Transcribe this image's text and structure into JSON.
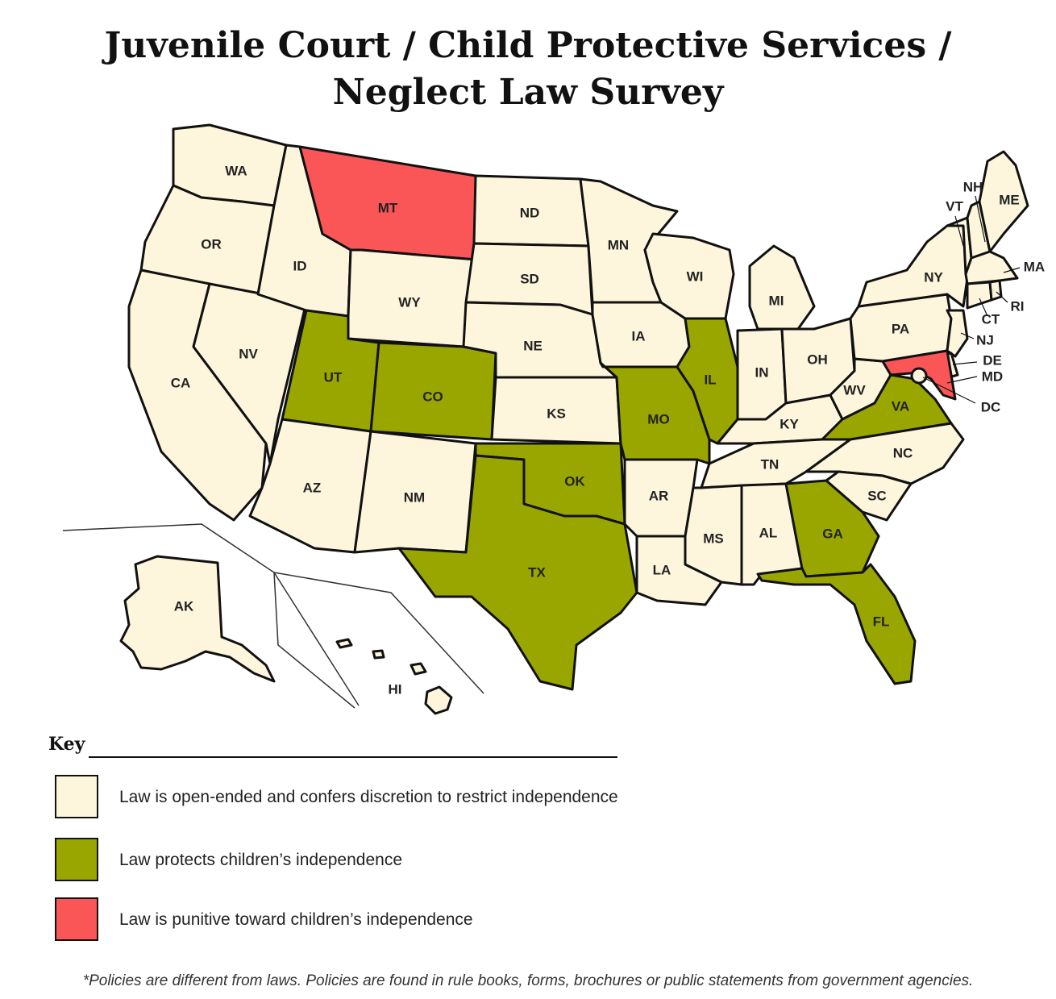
{
  "title_line1": "Juvenile Court / Child Protective Services /",
  "title_line2": "Neglect Law Survey",
  "colors": {
    "open": "#fdf6dc",
    "protects": "#9aa600",
    "punitive": "#fa5557"
  },
  "categories": {
    "punitive": [
      "MT",
      "MD"
    ],
    "protects": [
      "UT",
      "CO",
      "TX",
      "OK",
      "MO",
      "IL",
      "GA",
      "FL",
      "VA"
    ],
    "open": [
      "WA",
      "OR",
      "CA",
      "ID",
      "NV",
      "AZ",
      "WY",
      "NM",
      "ND",
      "SD",
      "NE",
      "KS",
      "MN",
      "IA",
      "AR",
      "LA",
      "WI",
      "MI",
      "IN",
      "OH",
      "KY",
      "TN",
      "MS",
      "AL",
      "WV",
      "NC",
      "SC",
      "PA",
      "NY",
      "VT",
      "NH",
      "ME",
      "MA",
      "RI",
      "CT",
      "NJ",
      "DE",
      "DC",
      "AK",
      "HI"
    ]
  },
  "state_labels": {
    "WA": "WA",
    "OR": "OR",
    "CA": "CA",
    "ID": "ID",
    "NV": "NV",
    "MT": "MT",
    "WY": "WY",
    "UT": "UT",
    "AZ": "AZ",
    "CO": "CO",
    "NM": "NM",
    "ND": "ND",
    "SD": "SD",
    "NE": "NE",
    "KS": "KS",
    "OK": "OK",
    "TX": "TX",
    "MN": "MN",
    "IA": "IA",
    "MO": "MO",
    "AR": "AR",
    "LA": "LA",
    "WI": "WI",
    "IL": "IL",
    "MI": "MI",
    "IN": "IN",
    "OH": "OH",
    "KY": "KY",
    "TN": "TN",
    "MS": "MS",
    "AL": "AL",
    "GA": "GA",
    "FL": "FL",
    "WV": "WV",
    "VA": "VA",
    "NC": "NC",
    "SC": "SC",
    "PA": "PA",
    "NY": "NY",
    "VT": "VT",
    "NH": "NH",
    "ME": "ME",
    "MA": "MA",
    "RI": "RI",
    "CT": "CT",
    "NJ": "NJ",
    "DE": "DE",
    "MD": "MD",
    "DC": "DC",
    "AK": "AK",
    "HI": "HI"
  },
  "key": {
    "title": "Key",
    "items": [
      {
        "label": "Law is open-ended and confers discretion to restrict independence",
        "color": "#fdf6dc"
      },
      {
        "label": "Law protects children’s independence",
        "color": "#9aa600"
      },
      {
        "label": "Law is punitive toward children’s independence",
        "color": "#fa5557"
      }
    ]
  },
  "footnote": "*Policies are different from laws. Policies are found in rule books, forms, brochures or public statements from government agencies."
}
